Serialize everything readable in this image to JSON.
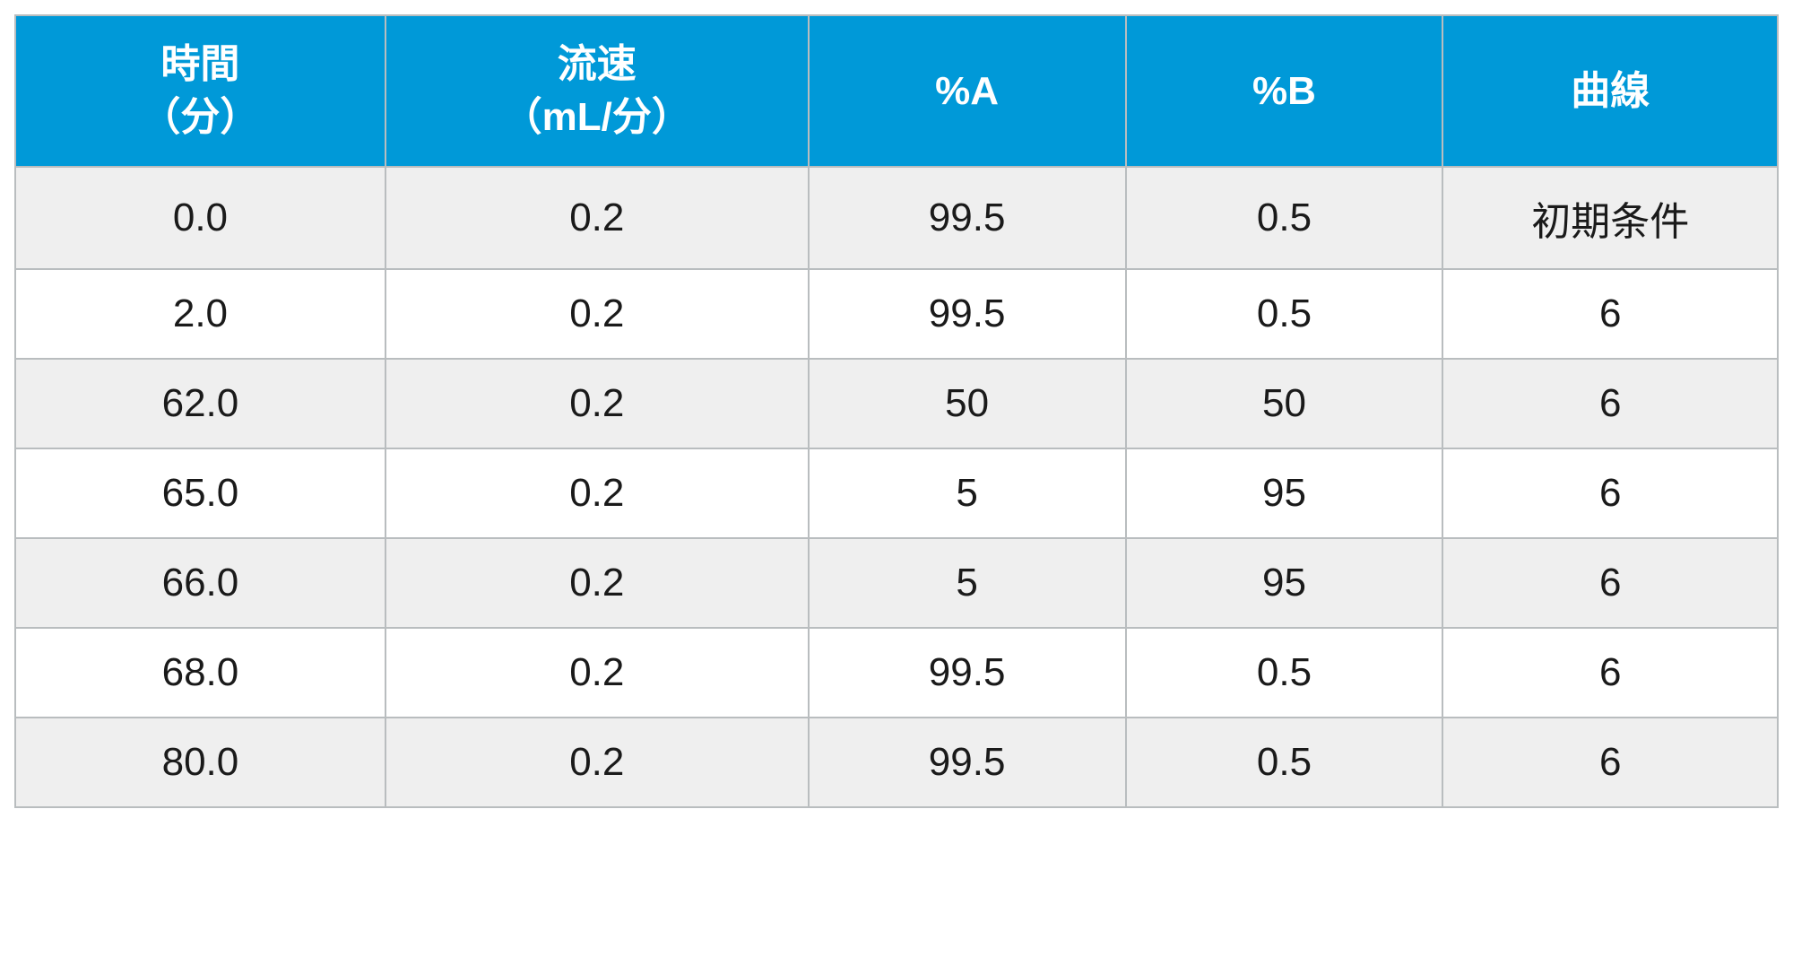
{
  "table": {
    "type": "table",
    "header_bg": "#0099d8",
    "header_text_color": "#ffffff",
    "border_color": "#b9bdbf",
    "row_odd_bg": "#efefef",
    "row_even_bg": "#ffffff",
    "cell_text_color": "#1a1a1a",
    "header_fontsize": 44,
    "cell_fontsize": 44,
    "header_fontweight": 700,
    "cell_fontweight": 400,
    "border_width": 2,
    "column_widths_pct": [
      21,
      24,
      18,
      18,
      19
    ],
    "columns": [
      {
        "key": "time",
        "label": "時間\n（分）"
      },
      {
        "key": "flow",
        "label": "流速\n（mL/分）"
      },
      {
        "key": "pA",
        "label": "%A"
      },
      {
        "key": "pB",
        "label": "%B"
      },
      {
        "key": "curve",
        "label": "曲線"
      }
    ],
    "rows": [
      {
        "time": "0.0",
        "flow": "0.2",
        "pA": "99.5",
        "pB": "0.5",
        "curve": "初期条件"
      },
      {
        "time": "2.0",
        "flow": "0.2",
        "pA": "99.5",
        "pB": "0.5",
        "curve": "6"
      },
      {
        "time": "62.0",
        "flow": "0.2",
        "pA": "50",
        "pB": "50",
        "curve": "6"
      },
      {
        "time": "65.0",
        "flow": "0.2",
        "pA": "5",
        "pB": "95",
        "curve": "6"
      },
      {
        "time": "66.0",
        "flow": "0.2",
        "pA": "5",
        "pB": "95",
        "curve": "6"
      },
      {
        "time": "68.0",
        "flow": "0.2",
        "pA": "99.5",
        "pB": "0.5",
        "curve": "6"
      },
      {
        "time": "80.0",
        "flow": "0.2",
        "pA": "99.5",
        "pB": "0.5",
        "curve": "6"
      }
    ]
  }
}
